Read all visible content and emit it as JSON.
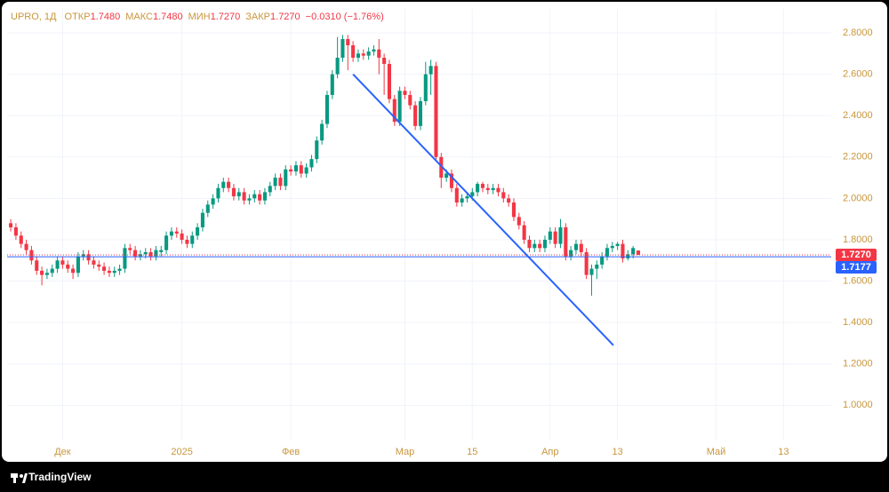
{
  "chart_data": {
    "type": "candlestick",
    "header": {
      "symbol": "UPRO, 1Д",
      "fields": [
        {
          "label": "ОТКР",
          "value": "1.7480"
        },
        {
          "label": "МАКС",
          "value": "1.7480"
        },
        {
          "label": "МИН",
          "value": "1.7270"
        },
        {
          "label": "ЗАКР",
          "value": "1.7270"
        }
      ],
      "change": "−0.0310 (−1.76%)"
    },
    "open": [
      1.88,
      1.86,
      1.82,
      1.78,
      1.75,
      1.7,
      1.65,
      1.63,
      1.64,
      1.66,
      1.7,
      1.68,
      1.66,
      1.64,
      1.72,
      1.73,
      1.7,
      1.68,
      1.67,
      1.65,
      1.64,
      1.65,
      1.66,
      1.76,
      1.75,
      1.72,
      1.73,
      1.74,
      1.72,
      1.74,
      1.75,
      1.82,
      1.84,
      1.83,
      1.8,
      1.78,
      1.82,
      1.86,
      1.93,
      1.97,
      2.0,
      2.05,
      2.08,
      2.05,
      2.01,
      2.03,
      1.99,
      2.0,
      2.02,
      1.99,
      2.03,
      2.06,
      2.1,
      2.06,
      2.14,
      2.13,
      2.16,
      2.12,
      2.15,
      2.19,
      2.28,
      2.36,
      2.5,
      2.6,
      2.68,
      2.77,
      2.74,
      2.68,
      2.7,
      2.69,
      2.71,
      2.72,
      2.68,
      2.65,
      2.48,
      2.37,
      2.52,
      2.5,
      2.45,
      2.35,
      2.47,
      2.6,
      2.64,
      2.2,
      2.1,
      2.12,
      2.05,
      1.98,
      2.0,
      2.01,
      2.03,
      2.07,
      2.05,
      2.04,
      2.05,
      2.03,
      2.0,
      1.98,
      1.91,
      1.87,
      1.8,
      1.76,
      1.78,
      1.76,
      1.8,
      1.84,
      1.78,
      1.86,
      1.72,
      1.75,
      1.78,
      1.74,
      1.63,
      1.66,
      1.68,
      1.72,
      1.76,
      1.77,
      1.78,
      1.71,
      1.73,
      1.748
    ],
    "high": [
      1.9,
      1.88,
      1.84,
      1.8,
      1.77,
      1.72,
      1.67,
      1.66,
      1.68,
      1.72,
      1.72,
      1.7,
      1.68,
      1.74,
      1.75,
      1.75,
      1.72,
      1.7,
      1.69,
      1.67,
      1.67,
      1.68,
      1.78,
      1.78,
      1.77,
      1.75,
      1.76,
      1.76,
      1.77,
      1.77,
      1.84,
      1.86,
      1.86,
      1.85,
      1.82,
      1.84,
      1.88,
      1.95,
      1.99,
      2.02,
      2.07,
      2.1,
      2.1,
      2.07,
      2.05,
      2.05,
      2.02,
      2.04,
      2.04,
      2.05,
      2.08,
      2.12,
      2.12,
      2.16,
      2.16,
      2.18,
      2.18,
      2.17,
      2.21,
      2.3,
      2.38,
      2.52,
      2.62,
      2.78,
      2.79,
      2.79,
      2.76,
      2.72,
      2.72,
      2.73,
      2.74,
      2.77,
      2.7,
      2.67,
      2.5,
      2.54,
      2.54,
      2.52,
      2.47,
      2.49,
      2.66,
      2.67,
      2.66,
      2.22,
      2.14,
      2.14,
      2.07,
      2.02,
      2.03,
      2.05,
      2.08,
      2.08,
      2.07,
      2.07,
      2.07,
      2.05,
      2.02,
      2.0,
      1.93,
      1.89,
      1.82,
      1.8,
      1.8,
      1.82,
      1.86,
      1.86,
      1.9,
      1.88,
      1.77,
      1.8,
      1.8,
      1.76,
      1.68,
      1.7,
      1.74,
      1.78,
      1.79,
      1.79,
      1.8,
      1.75,
      1.77,
      1.748
    ],
    "low": [
      1.84,
      1.8,
      1.76,
      1.73,
      1.68,
      1.63,
      1.58,
      1.61,
      1.62,
      1.64,
      1.66,
      1.64,
      1.61,
      1.62,
      1.7,
      1.68,
      1.66,
      1.65,
      1.63,
      1.62,
      1.62,
      1.63,
      1.64,
      1.73,
      1.7,
      1.7,
      1.71,
      1.7,
      1.7,
      1.72,
      1.73,
      1.8,
      1.81,
      1.78,
      1.76,
      1.76,
      1.8,
      1.84,
      1.91,
      1.95,
      1.98,
      2.03,
      2.03,
      1.99,
      1.99,
      1.97,
      1.97,
      1.98,
      1.97,
      1.97,
      2.01,
      2.04,
      2.04,
      2.04,
      2.11,
      2.11,
      2.1,
      2.1,
      2.13,
      2.17,
      2.26,
      2.34,
      2.48,
      2.58,
      2.66,
      2.62,
      2.66,
      2.66,
      2.67,
      2.67,
      2.69,
      2.6,
      2.5,
      2.46,
      2.35,
      2.35,
      2.48,
      2.43,
      2.33,
      2.33,
      2.45,
      2.5,
      2.18,
      2.05,
      2.08,
      2.03,
      1.96,
      1.96,
      1.98,
      1.99,
      2.01,
      2.03,
      2.02,
      2.02,
      2.01,
      1.98,
      1.96,
      1.89,
      1.85,
      1.78,
      1.74,
      1.74,
      1.74,
      1.74,
      1.78,
      1.76,
      1.76,
      1.7,
      1.7,
      1.73,
      1.72,
      1.61,
      1.53,
      1.61,
      1.66,
      1.7,
      1.74,
      1.75,
      1.69,
      1.7,
      1.71,
      1.727
    ],
    "close": [
      1.86,
      1.82,
      1.78,
      1.75,
      1.7,
      1.65,
      1.63,
      1.64,
      1.66,
      1.7,
      1.68,
      1.66,
      1.64,
      1.72,
      1.73,
      1.7,
      1.68,
      1.67,
      1.65,
      1.64,
      1.65,
      1.66,
      1.76,
      1.75,
      1.72,
      1.73,
      1.74,
      1.72,
      1.75,
      1.75,
      1.82,
      1.84,
      1.83,
      1.8,
      1.78,
      1.82,
      1.86,
      1.93,
      1.97,
      2.0,
      2.05,
      2.08,
      2.05,
      2.01,
      2.03,
      1.99,
      2.0,
      2.02,
      1.99,
      2.03,
      2.06,
      2.1,
      2.06,
      2.14,
      2.13,
      2.16,
      2.12,
      2.15,
      2.19,
      2.28,
      2.36,
      2.5,
      2.6,
      2.68,
      2.77,
      2.74,
      2.68,
      2.7,
      2.69,
      2.71,
      2.72,
      2.68,
      2.65,
      2.48,
      2.37,
      2.52,
      2.5,
      2.45,
      2.35,
      2.47,
      2.6,
      2.64,
      2.2,
      2.1,
      2.12,
      2.05,
      1.98,
      2.0,
      2.01,
      2.03,
      2.07,
      2.05,
      2.04,
      2.05,
      2.03,
      2.0,
      1.98,
      1.91,
      1.87,
      1.8,
      1.76,
      1.78,
      1.76,
      1.8,
      1.84,
      1.78,
      1.86,
      1.72,
      1.75,
      1.78,
      1.74,
      1.63,
      1.66,
      1.68,
      1.72,
      1.76,
      1.77,
      1.78,
      1.71,
      1.73,
      1.76,
      1.727
    ],
    "up_color": "#089981",
    "down_color": "#f23645",
    "xlim": [
      -0.7,
      158.2
    ],
    "xticks": [
      {
        "value": 10,
        "label": "Дек"
      },
      {
        "value": 33,
        "label": "2025"
      },
      {
        "value": 54,
        "label": "Фев"
      },
      {
        "value": 76,
        "label": "Мар"
      },
      {
        "value": 89,
        "label": "15"
      },
      {
        "value": 104,
        "label": "Апр"
      },
      {
        "value": 117,
        "label": "13"
      },
      {
        "value": 136,
        "label": "Май"
      },
      {
        "value": 149,
        "label": "13"
      }
    ],
    "ylim": [
      0.834,
      2.916
    ],
    "yticks": [
      {
        "value": 1.0,
        "label": "1.0000"
      },
      {
        "value": 1.2,
        "label": "1.2000"
      },
      {
        "value": 1.4,
        "label": "1.4000"
      },
      {
        "value": 1.6,
        "label": "1.6000"
      },
      {
        "value": 1.8,
        "label": "1.8000"
      },
      {
        "value": 2.0,
        "label": "2.0000"
      },
      {
        "value": 2.2,
        "label": "2.2000"
      },
      {
        "value": 2.4,
        "label": "2.4000"
      },
      {
        "value": 2.6,
        "label": "2.6000"
      },
      {
        "value": 2.8,
        "label": "2.8000"
      }
    ],
    "grid": true,
    "price_lines": [
      {
        "value": 1.727,
        "label": "1.7270",
        "color": "#f23645",
        "dashed": true
      },
      {
        "value": 1.7177,
        "label": "1.7177",
        "color": "#2962ff",
        "dashed": false
      }
    ],
    "trend_line": {
      "x": [
        66,
        116.2
      ],
      "y": [
        2.6,
        1.29
      ],
      "color": "#2962ff"
    },
    "branding": "TradingView"
  }
}
